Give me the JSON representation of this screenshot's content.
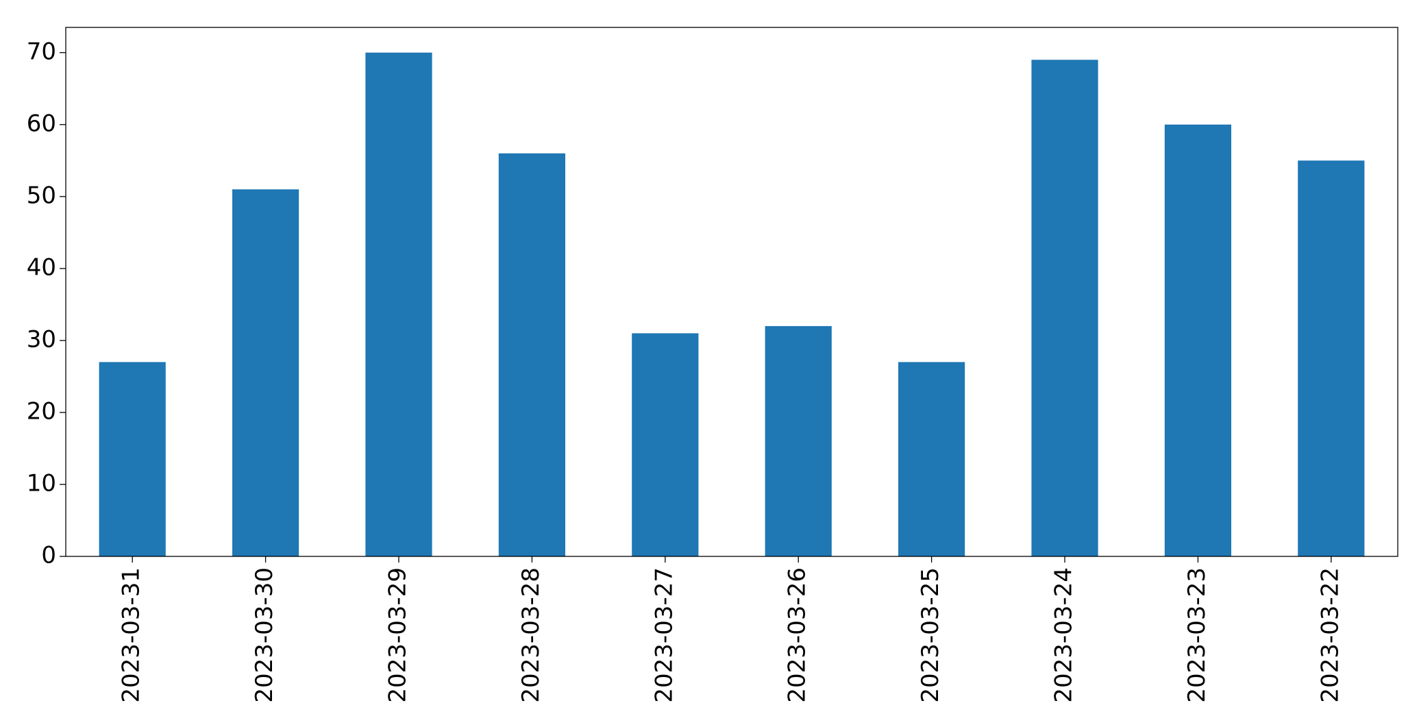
{
  "chart_data": {
    "type": "bar",
    "categories": [
      "2023-03-31",
      "2023-03-30",
      "2023-03-29",
      "2023-03-28",
      "2023-03-27",
      "2023-03-26",
      "2023-03-25",
      "2023-03-24",
      "2023-03-23",
      "2023-03-22"
    ],
    "values": [
      27,
      51,
      70,
      56,
      31,
      32,
      27,
      69,
      60,
      55
    ],
    "color": "#1f77b4",
    "ylim": [
      0,
      73.5
    ],
    "yticks": [
      0,
      10,
      20,
      30,
      40,
      50,
      60,
      70
    ],
    "grid": false
  }
}
